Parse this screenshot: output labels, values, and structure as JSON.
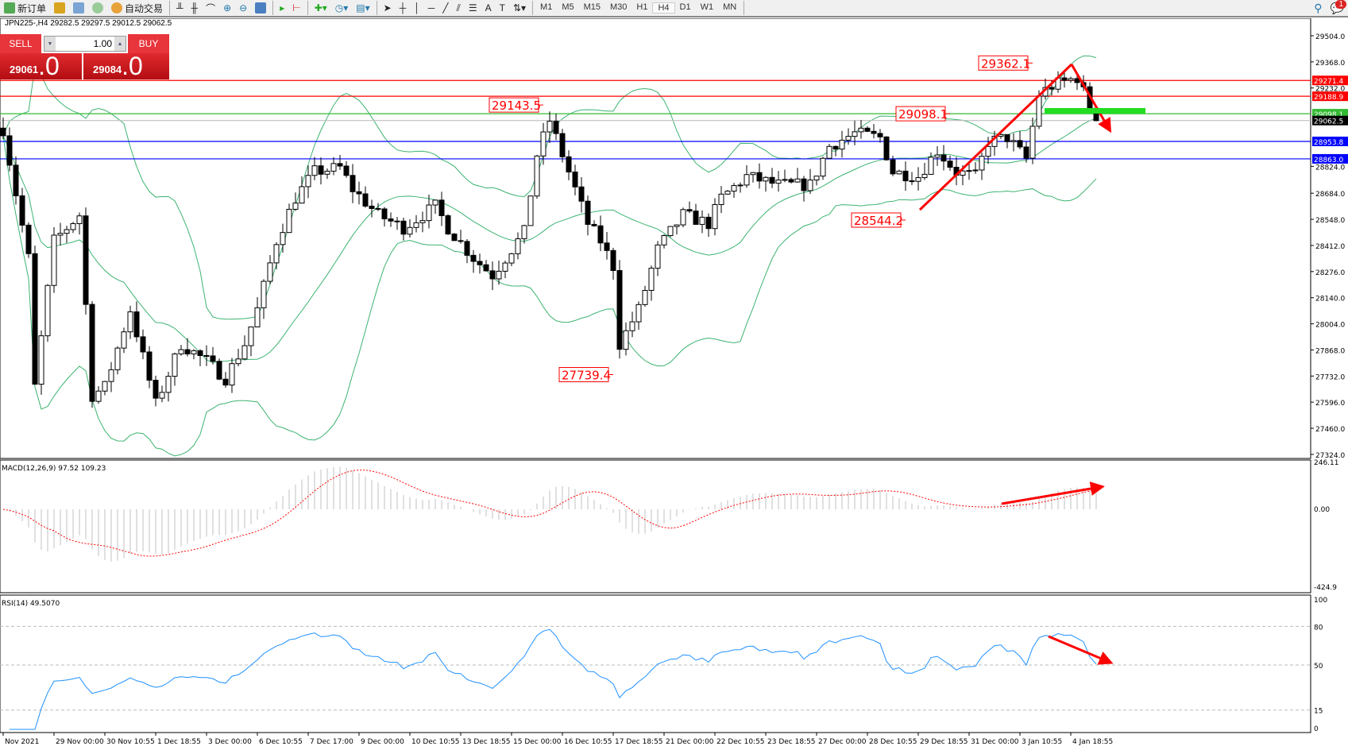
{
  "toolbar": {
    "new_order": "新订单",
    "auto_trading": "自动交易",
    "timeframes": [
      "M1",
      "M5",
      "M15",
      "M30",
      "H1",
      "H4",
      "D1",
      "W1",
      "MN"
    ],
    "active_timeframe": "H4",
    "notification_count": "1"
  },
  "symbol_info": "JPN225-,H4  29282.5 29297.5 29012.5 29062.5",
  "trade_panel": {
    "sell_label": "SELL",
    "buy_label": "BUY",
    "lot": "1.00",
    "sell_small": "29061",
    "sell_big": ".0",
    "buy_small": "29084",
    "buy_big": ".0"
  },
  "price_axis": [
    "29504.0",
    "29368.0",
    "29232.0",
    "28824.0",
    "28684.0",
    "28548.0",
    "28412.0",
    "28276.0",
    "28140.0",
    "28004.0",
    "27868.0",
    "27732.0",
    "27596.0",
    "27460.0",
    "27324.0"
  ],
  "price_axis_values": [
    29504,
    29368,
    29232,
    28824,
    28684,
    28548,
    28412,
    28276,
    28140,
    28004,
    27868,
    27732,
    27596,
    27460,
    27324
  ],
  "hlines": [
    {
      "price": 29271.4,
      "label": "29271.4",
      "color": "#ff0000"
    },
    {
      "price": 29188.9,
      "label": "29188.9",
      "color": "#ff0000"
    },
    {
      "price": 29098.1,
      "label": "29098.1",
      "color": "#33bb33"
    },
    {
      "price": 29062.5,
      "label": "29062.5",
      "color": "#000000"
    },
    {
      "price": 28953.8,
      "label": "28953.8",
      "color": "#0000ff"
    },
    {
      "price": 28863.0,
      "label": "28863.0",
      "color": "#0000ff"
    }
  ],
  "annotations": [
    {
      "text": "29362.1",
      "price": 29362.1,
      "bar": 162
    },
    {
      "text": "29143.5",
      "price": 29143.5,
      "bar": 85
    },
    {
      "text": "29098.1",
      "price": 29098.1,
      "bar": 149
    },
    {
      "text": "28544.2",
      "price": 28544.2,
      "bar": 142
    },
    {
      "text": "27739.4",
      "price": 27739.4,
      "bar": 96
    }
  ],
  "macd": {
    "label": "MACD(12,26,9) 97.52 109.23",
    "axis": [
      "246.11",
      "0.00",
      "-424.9"
    ]
  },
  "rsi": {
    "label": "RSI(14) 49.5070",
    "axis": [
      "100",
      "80",
      "50",
      "15",
      "0"
    ]
  },
  "time_axis": [
    "Nov 2021",
    "29 Nov 00:00",
    "30 Nov 10:55",
    "1 Dec 18:55",
    "3 Dec 00:00",
    "6 Dec 10:55",
    "7 Dec 17:00",
    "9 Dec 00:00",
    "10 Dec 10:55",
    "13 Dec 18:55",
    "15 Dec 00:00",
    "16 Dec 10:55",
    "17 Dec 18:55",
    "21 Dec 00:00",
    "22 Dec 10:55",
    "23 Dec 18:55",
    "27 Dec 00:00",
    "28 Dec 10:55",
    "29 Dec 18:55",
    "31 Dec 00:00",
    "3 Jan 10:55",
    "4 Jan 18:55"
  ],
  "colors": {
    "bull": "#ffffff",
    "bear": "#000000",
    "bands": "#3cb371",
    "macd_hist": "#c0c0c0",
    "macd_signal": "#ff0000",
    "rsi": "#1e90ff",
    "arrow": "#ff0000"
  },
  "chart_data": {
    "type": "candlestick",
    "approx_closes_by_bar": [
      [
        0,
        29018
      ],
      [
        4,
        28347
      ],
      [
        5,
        27675
      ],
      [
        8,
        28436
      ],
      [
        12,
        28571
      ],
      [
        14,
        27631
      ],
      [
        16,
        27675
      ],
      [
        20,
        28078
      ],
      [
        24,
        27586
      ],
      [
        28,
        27899
      ],
      [
        32,
        27810
      ],
      [
        35,
        27720
      ],
      [
        38,
        27899
      ],
      [
        40,
        28078
      ],
      [
        43,
        28436
      ],
      [
        46,
        28660
      ],
      [
        49,
        28795
      ],
      [
        53,
        28817
      ],
      [
        55,
        28705
      ],
      [
        59,
        28571
      ],
      [
        63,
        28504
      ],
      [
        68,
        28616
      ],
      [
        70,
        28504
      ],
      [
        74,
        28347
      ],
      [
        77,
        28257
      ],
      [
        80,
        28392
      ],
      [
        82,
        28481
      ],
      [
        84,
        28884
      ],
      [
        86,
        29063
      ],
      [
        89,
        28795
      ],
      [
        92,
        28526
      ],
      [
        94,
        28436
      ],
      [
        96,
        28302
      ],
      [
        97,
        27899
      ],
      [
        100,
        28078
      ],
      [
        103,
        28392
      ],
      [
        107,
        28571
      ],
      [
        111,
        28526
      ],
      [
        113,
        28660
      ],
      [
        117,
        28772
      ],
      [
        122,
        28727
      ],
      [
        127,
        28727
      ],
      [
        130,
        28929
      ],
      [
        134,
        28996
      ],
      [
        138,
        28974
      ],
      [
        140,
        28795
      ],
      [
        144,
        28772
      ],
      [
        147,
        28906
      ],
      [
        150,
        28795
      ],
      [
        153,
        28772
      ],
      [
        155,
        28951
      ],
      [
        158,
        28974
      ],
      [
        161,
        28862
      ],
      [
        163,
        29198
      ],
      [
        165,
        29243
      ],
      [
        169,
        29287
      ],
      [
        172,
        29062
      ]
    ],
    "indicators": [
      "Bollinger Bands",
      "MACD(12,26,9)",
      "RSI(14)"
    ],
    "ylim": [
      27324,
      29504
    ]
  }
}
